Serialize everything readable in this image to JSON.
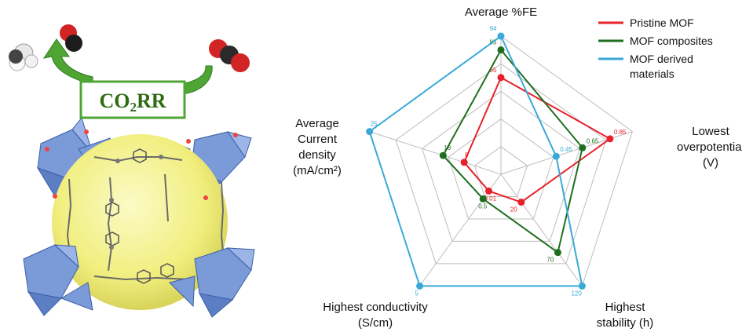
{
  "badge": {
    "main": "CO",
    "sub": "2",
    "tail": "RR"
  },
  "illustration": {
    "subject": "mof-framework-with-pore-sphere",
    "molecules": [
      "ch4-molecule",
      "co-molecule",
      "co2-molecule"
    ]
  },
  "colors": {
    "pristine": "#e8202a",
    "composites": "#1f6e1f",
    "derived": "#3aa9d8",
    "grid": "#bdbdbd",
    "arrow": "#4fa534",
    "sphere": "#f4f28a",
    "polyhedra": "#7a9ad8"
  },
  "chart_data": {
    "type": "radar",
    "title": "",
    "axes": [
      {
        "key": "fe",
        "label_lines": [
          "Average %FE"
        ]
      },
      {
        "key": "op",
        "label_lines": [
          "Lowest",
          "overpotential",
          "(V)"
        ]
      },
      {
        "key": "st",
        "label_lines": [
          "Highest",
          "stability (h)"
        ]
      },
      {
        "key": "co",
        "label_lines": [
          "Highest conductivity",
          "(S/cm)"
        ]
      },
      {
        "key": "cd",
        "label_lines": [
          "Average",
          "Current",
          "density",
          "(mA/cm²)"
        ]
      }
    ],
    "rings": 5,
    "series": [
      {
        "name": "Pristine MOF",
        "color": "#e8202a",
        "values": [
          0.7,
          0.83,
          0.25,
          0.15,
          0.28
        ],
        "labels": [
          "65",
          "0.85",
          "20",
          "0.01",
          "8"
        ]
      },
      {
        "name": "MOF composites",
        "color": "#1f6e1f",
        "values": [
          0.9,
          0.62,
          0.7,
          0.22,
          0.44
        ],
        "labels": [
          "85",
          "0.65",
          "70",
          "0.5",
          "18"
        ]
      },
      {
        "name": "MOF derived materials",
        "color": "#3aa9d8",
        "values": [
          1.0,
          0.42,
          1.0,
          1.0,
          1.0
        ],
        "labels": [
          "94",
          "0.45",
          "120",
          "5",
          "25"
        ]
      }
    ],
    "legend": {
      "position": "top-right",
      "entries": [
        {
          "lines": [
            "Pristine MOF"
          ],
          "color": "#e8202a"
        },
        {
          "lines": [
            "MOF composites"
          ],
          "color": "#1f6e1f"
        },
        {
          "lines": [
            "MOF derived",
            "materials"
          ],
          "color": "#3aa9d8"
        }
      ]
    }
  }
}
